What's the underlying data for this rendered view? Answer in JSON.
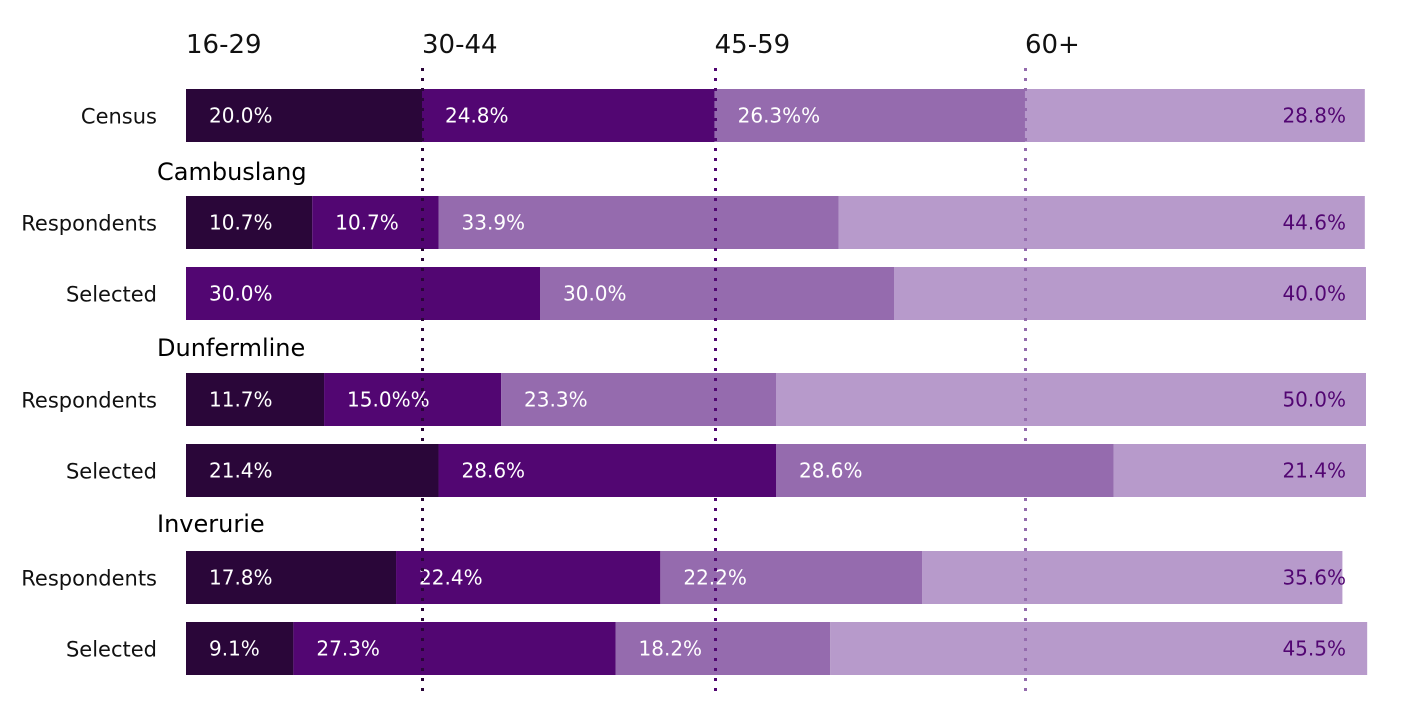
{
  "chart_data": {
    "type": "bar",
    "stacked": true,
    "orientation": "horizontal",
    "normalized_percent": true,
    "categories": [
      "16-29",
      "30-44",
      "45-59",
      "60+"
    ],
    "colors": [
      "#2a0639",
      "#520672",
      "#956bae",
      "#b79acb"
    ],
    "label_colors": [
      "#ffffff",
      "#ffffff",
      "#ffffff",
      "#520672"
    ],
    "rows": [
      {
        "group": "",
        "label": "Census",
        "values": [
          20.0,
          24.8,
          26.3,
          28.8
        ],
        "labels": [
          "20.0%",
          "24.8%",
          "26.3%%",
          "28.8%"
        ]
      },
      {
        "group": "Cambuslang",
        "label": "Respondents",
        "values": [
          10.7,
          10.7,
          33.9,
          44.6
        ],
        "labels": [
          "10.7%",
          "10.7%",
          "33.9%",
          "44.6%"
        ]
      },
      {
        "group": "Cambuslang",
        "label": "Selected",
        "values": [
          0,
          30.0,
          30.0,
          40.0
        ],
        "labels": [
          "",
          "30.0%",
          "30.0%",
          "40.0%"
        ]
      },
      {
        "group": "Dunfermline",
        "label": "Respondents",
        "values": [
          11.7,
          15.0,
          23.3,
          50.0
        ],
        "labels": [
          "11.7%",
          "15.0%%",
          "23.3%",
          "50.0%"
        ]
      },
      {
        "group": "Dunfermline",
        "label": "Selected",
        "values": [
          21.4,
          28.6,
          28.6,
          21.4
        ],
        "labels": [
          "21.4%",
          "28.6%",
          "28.6%",
          "21.4%"
        ]
      },
      {
        "group": "Inverurie",
        "label": "Respondents",
        "values": [
          17.8,
          22.4,
          22.2,
          35.6
        ],
        "labels": [
          "17.8%",
          "22.4%",
          "22.2%",
          "35.6%"
        ]
      },
      {
        "group": "Inverurie",
        "label": "Selected",
        "values": [
          9.1,
          27.3,
          18.2,
          45.5
        ],
        "labels": [
          "9.1%",
          "27.3%",
          "18.2%",
          "45.5%"
        ]
      }
    ],
    "groups": [
      "Cambuslang",
      "Dunfermline",
      "Inverurie"
    ],
    "reference_lines": {
      "description_source": "census cumulative boundaries",
      "values": [
        20.0,
        44.8,
        71.1
      ]
    },
    "xlim": [
      0,
      100
    ],
    "legend": "category labels along top"
  }
}
